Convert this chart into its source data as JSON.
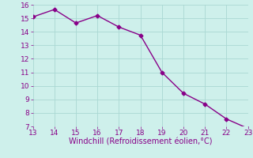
{
  "x": [
    13,
    14,
    15,
    16,
    17,
    18,
    19,
    20,
    21,
    22,
    23
  ],
  "y": [
    15.1,
    15.65,
    14.65,
    15.2,
    14.35,
    13.75,
    11.0,
    9.45,
    8.65,
    7.55,
    6.85
  ],
  "line_color": "#880088",
  "marker": "D",
  "marker_size": 2.5,
  "bg_color": "#cef0eb",
  "grid_color": "#aad8d3",
  "xlabel": "Windchill (Refroidissement éolien,°C)",
  "xlabel_color": "#880088",
  "xlim": [
    13,
    23
  ],
  "ylim": [
    7,
    16
  ],
  "xticks": [
    13,
    14,
    15,
    16,
    17,
    18,
    19,
    20,
    21,
    22,
    23
  ],
  "yticks": [
    7,
    8,
    9,
    10,
    11,
    12,
    13,
    14,
    15,
    16
  ],
  "tick_color": "#880088",
  "tick_fontsize": 6.5,
  "xlabel_fontsize": 7,
  "linewidth": 1.0
}
